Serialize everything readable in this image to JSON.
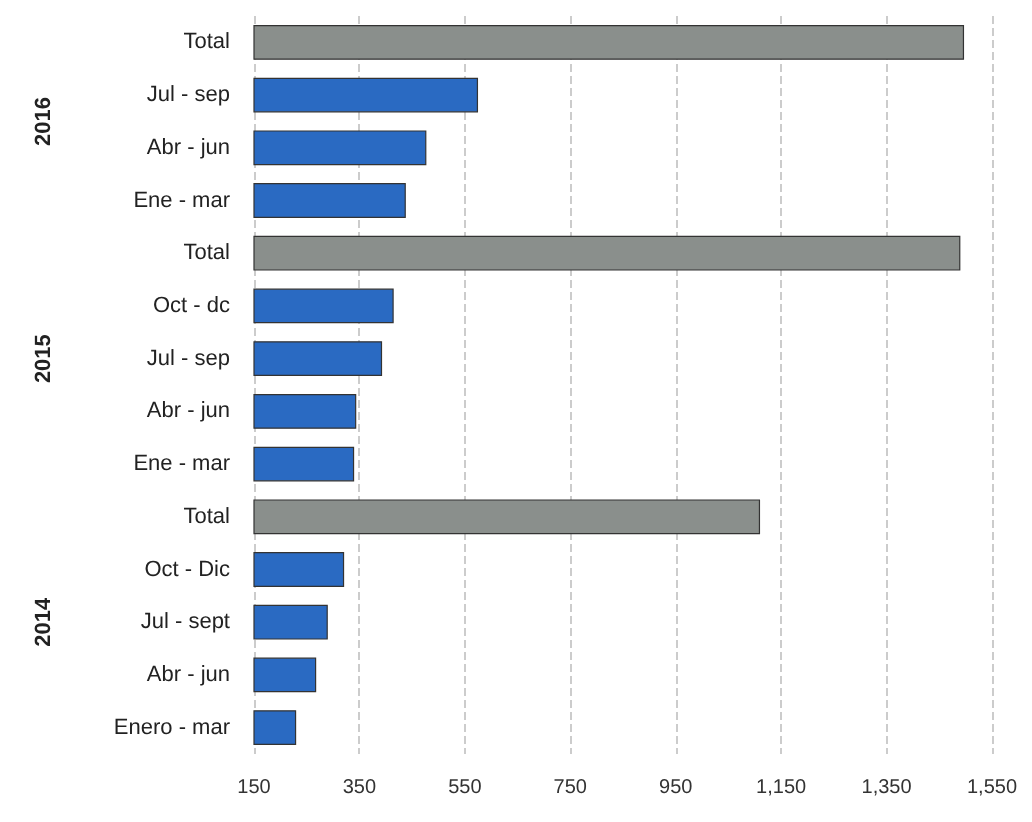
{
  "chart_data": {
    "type": "bar",
    "orientation": "horizontal",
    "categories": [
      "Total",
      "Jul - sep",
      "Abr - jun",
      "Ene - mar",
      "Total",
      "Oct - dc",
      "Jul - sep",
      "Abr - jun",
      "Ene - mar",
      "Total",
      "Oct - Dic",
      "Jul - sept",
      "Abr - jun",
      "Enero - mar"
    ],
    "values": [
      1497,
      575,
      477,
      438,
      1490,
      415,
      393,
      344,
      340,
      1110,
      321,
      290,
      268,
      230
    ],
    "colors": [
      "#8a8f8c",
      "#2a6ac2",
      "#2a6ac2",
      "#2a6ac2",
      "#8a8f8c",
      "#2a6ac2",
      "#2a6ac2",
      "#2a6ac2",
      "#2a6ac2",
      "#8a8f8c",
      "#2a6ac2",
      "#2a6ac2",
      "#2a6ac2",
      "#2a6ac2"
    ],
    "xlim": [
      150,
      1550
    ],
    "xticks": [
      150,
      350,
      550,
      750,
      950,
      {
        "value": 1150,
        "label": "1,150"
      },
      {
        "value": 1350,
        "label": "1,350"
      },
      {
        "value": 1550,
        "label": "1,550"
      }
    ],
    "grid": "x",
    "annotations": [
      "2016",
      "2015",
      "2014"
    ]
  }
}
